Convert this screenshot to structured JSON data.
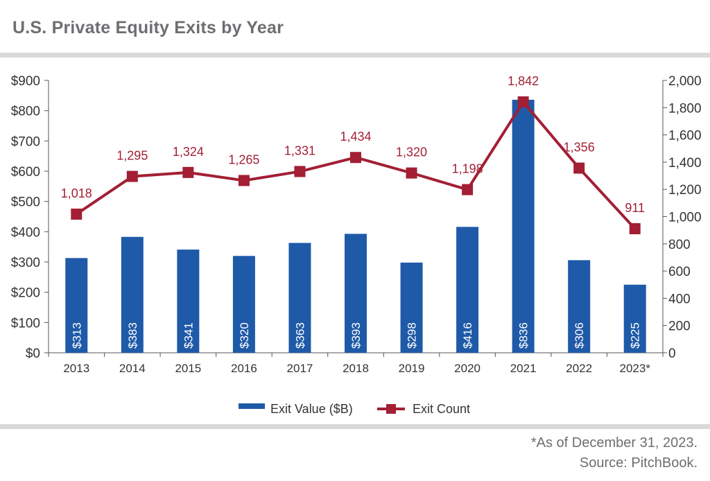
{
  "header": {
    "title": "U.S. Private Equity Exits by Year"
  },
  "colors": {
    "bar": "#1f5aa8",
    "line": "#a31f34",
    "axis": "#555555",
    "text": "#333333",
    "rule": "#d9d9d9"
  },
  "chart_data": {
    "type": "bar+line",
    "title": "U.S. Private Equity Exits by Year",
    "categories": [
      "2013",
      "2014",
      "2015",
      "2016",
      "2017",
      "2018",
      "2019",
      "2020",
      "2021",
      "2022",
      "2023*"
    ],
    "series": [
      {
        "name": "Exit Value ($B)",
        "type": "bar",
        "axis": "left",
        "values": [
          313,
          383,
          341,
          320,
          363,
          393,
          298,
          416,
          836,
          306,
          225
        ],
        "labels": [
          "$313",
          "$383",
          "$341",
          "$320",
          "$363",
          "$393",
          "$298",
          "$416",
          "$836",
          "$306",
          "$225"
        ]
      },
      {
        "name": "Exit Count",
        "type": "line",
        "axis": "right",
        "values": [
          1018,
          1295,
          1324,
          1265,
          1331,
          1434,
          1320,
          1198,
          1842,
          1356,
          911
        ],
        "labels": [
          "1,018",
          "1,295",
          "1,324",
          "1,265",
          "1,331",
          "1,434",
          "1,320",
          "1,198",
          "1,842",
          "1,356",
          "911"
        ]
      }
    ],
    "y_left": {
      "min": 0,
      "max": 900,
      "ticks": [
        0,
        100,
        200,
        300,
        400,
        500,
        600,
        700,
        800,
        900
      ],
      "tick_labels": [
        "$0",
        "$100",
        "$200",
        "$300",
        "$400",
        "$500",
        "$600",
        "$700",
        "$800",
        "$900"
      ]
    },
    "y_right": {
      "min": 0,
      "max": 2000,
      "ticks": [
        0,
        200,
        400,
        600,
        800,
        1000,
        1200,
        1400,
        1600,
        1800,
        2000
      ],
      "tick_labels": [
        "0",
        "200",
        "400",
        "600",
        "800",
        "1,000",
        "1,200",
        "1,400",
        "1,600",
        "1,800",
        "2,000"
      ]
    },
    "legend": {
      "position": "bottom-center",
      "entries": [
        "Exit Value ($B)",
        "Exit Count"
      ]
    },
    "grid": false
  },
  "footnotes": {
    "note": "*As of December 31, 2023.",
    "source": "Source: PitchBook."
  }
}
